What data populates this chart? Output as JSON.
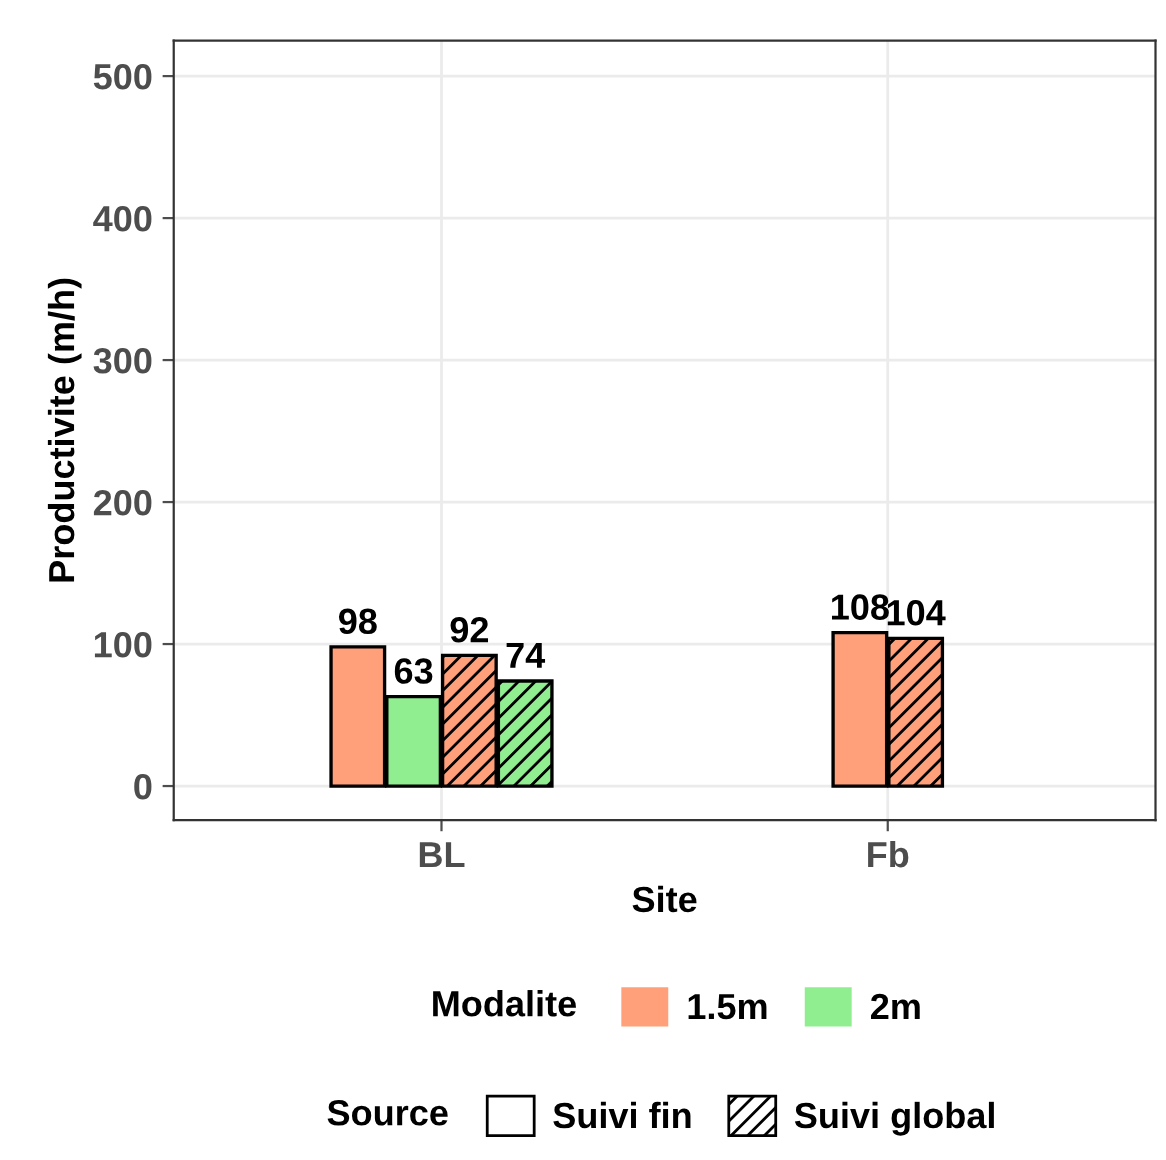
{
  "chart_data": {
    "type": "bar",
    "xlabel": "Site",
    "ylabel": "Productivite (m/h)",
    "categories": [
      "BL",
      "Fb"
    ],
    "series": [
      {
        "name": "1.5m",
        "color": "#ffa07a",
        "values": [
          98,
          108
        ]
      },
      {
        "name": "2m",
        "color": "#90ee90",
        "values": [
          63,
          null
        ]
      },
      {
        "color": "#ffa07a",
        "values": [
          92,
          104
        ]
      },
      {
        "color": "#90ee90",
        "values": [
          74,
          null
        ]
      }
    ],
    "legend_title": "Modalite",
    "annotations": [
      "Source",
      "Suivi fin",
      "Suivi global"
    ],
    "ylim": [
      -24,
      525
    ],
    "yticks": [
      0,
      100,
      200,
      300,
      400,
      500
    ],
    "grid": true,
    "legend": "bottom",
    "data_labels": true
  }
}
